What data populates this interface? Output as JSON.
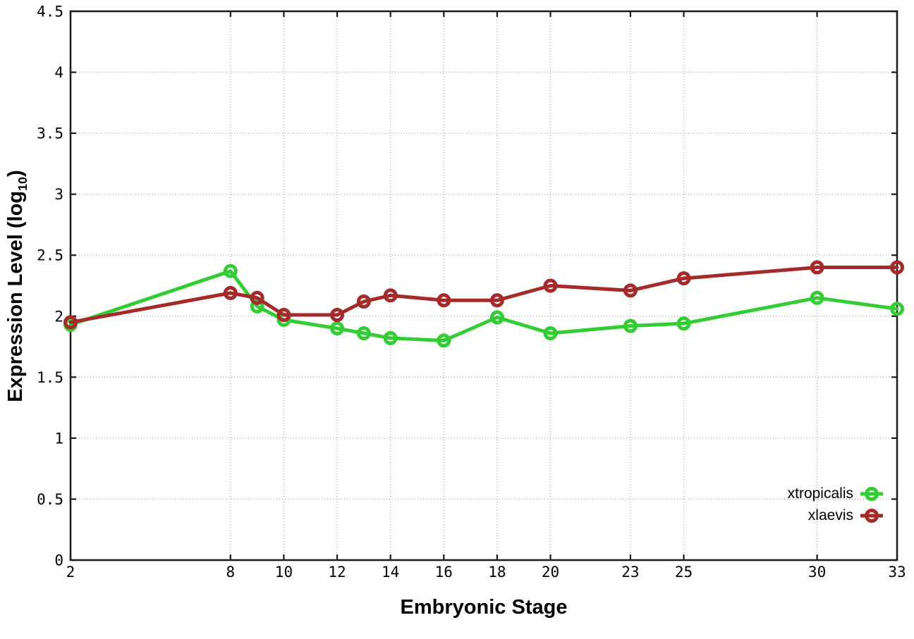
{
  "page": {
    "background": "#ffffff"
  },
  "chart_data": {
    "type": "line",
    "style": "linespoints-open-circle",
    "title": "",
    "xlabel": "Embryonic Stage",
    "ylabel": {
      "main": "Expression Level (log",
      "sub": "10",
      "end": ")"
    },
    "xlim": [
      2,
      33
    ],
    "ylim": [
      0,
      4.5
    ],
    "xticks": [
      2,
      8,
      10,
      12,
      14,
      16,
      18,
      20,
      23,
      25,
      30,
      33
    ],
    "yticks": [
      0,
      0.5,
      1,
      1.5,
      2,
      2.5,
      3,
      3.5,
      4,
      4.5
    ],
    "grid": true,
    "legend_position": "bottom-right-inside",
    "x": [
      2,
      8,
      9,
      10,
      12,
      13,
      14,
      16,
      18,
      20,
      23,
      25,
      30,
      33
    ],
    "series": [
      {
        "name": "xtropicalis",
        "color": "#32cd32",
        "values": [
          1.93,
          2.37,
          2.08,
          1.97,
          1.9,
          1.86,
          1.82,
          1.8,
          1.99,
          1.86,
          1.92,
          1.94,
          2.15,
          2.06
        ]
      },
      {
        "name": "xlaevis",
        "color": "#a52a2a",
        "values": [
          1.95,
          2.19,
          2.15,
          2.01,
          2.01,
          2.12,
          2.17,
          2.13,
          2.13,
          2.25,
          2.21,
          2.31,
          2.4,
          2.4
        ]
      }
    ],
    "colors": {
      "axis": "#1a1a1a",
      "grid": "#aaaaaa",
      "tick_label": "#000000"
    }
  }
}
